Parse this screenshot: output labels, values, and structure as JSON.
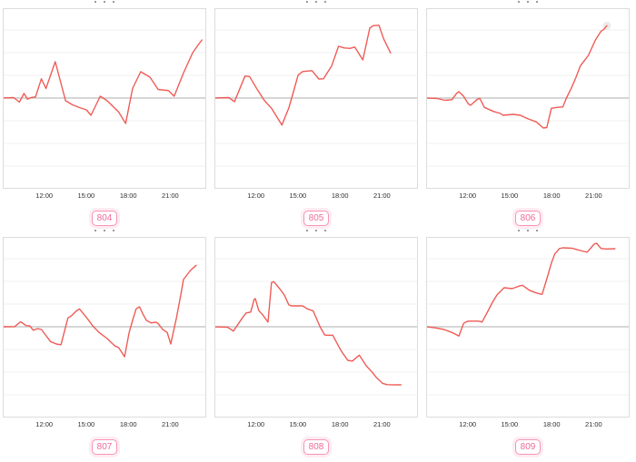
{
  "style": {
    "line_color": "#ef5b55",
    "baseline_color": "#c8c8c8",
    "gridline_color": "#f1f1f1",
    "badge_text_color": "#ee6a9a",
    "badge_border_color": "#f794b6"
  },
  "chart_data": [
    {
      "type": "line",
      "label": "804",
      "x_ticks": [
        "12:00",
        "15:00",
        "18:00",
        "21:00"
      ],
      "x_range": [
        "09:00",
        "23:45"
      ],
      "baseline": 0,
      "y_unit": "relative, 1.0 = one gridline division",
      "grid": "horizontal only",
      "line_color": "#ef5b55",
      "has_end_marker": false,
      "points": [
        [
          "09:00",
          0
        ],
        [
          "09:45",
          0.02
        ],
        [
          "10:10",
          -0.18
        ],
        [
          "10:30",
          0.2
        ],
        [
          "10:45",
          -0.05
        ],
        [
          "11:00",
          0.02
        ],
        [
          "11:20",
          0.05
        ],
        [
          "11:45",
          0.85
        ],
        [
          "12:05",
          0.42
        ],
        [
          "12:45",
          1.6
        ],
        [
          "13:30",
          -0.12
        ],
        [
          "14:00",
          -0.3
        ],
        [
          "14:30",
          -0.42
        ],
        [
          "15:00",
          -0.52
        ],
        [
          "15:20",
          -0.76
        ],
        [
          "16:00",
          0.08
        ],
        [
          "16:30",
          -0.12
        ],
        [
          "17:20",
          -0.62
        ],
        [
          "17:50",
          -1.12
        ],
        [
          "18:20",
          0.42
        ],
        [
          "18:55",
          1.16
        ],
        [
          "19:35",
          0.92
        ],
        [
          "20:10",
          0.38
        ],
        [
          "20:55",
          0.33
        ],
        [
          "21:20",
          0.08
        ],
        [
          "22:00",
          1.1
        ],
        [
          "22:40",
          2.0
        ],
        [
          "23:05",
          2.36
        ],
        [
          "23:20",
          2.56
        ]
      ]
    },
    {
      "type": "line",
      "label": "805",
      "x_ticks": [
        "12:00",
        "15:00",
        "18:00",
        "21:00"
      ],
      "x_range": [
        "09:00",
        "23:45"
      ],
      "baseline": 0,
      "y_unit": "relative, 1.0 = one gridline division",
      "grid": "horizontal only",
      "line_color": "#ef5b55",
      "has_end_marker": false,
      "points": [
        [
          "09:00",
          0
        ],
        [
          "10:00",
          0.02
        ],
        [
          "10:25",
          -0.16
        ],
        [
          "11:10",
          0.97
        ],
        [
          "11:30",
          0.95
        ],
        [
          "12:05",
          0.35
        ],
        [
          "12:35",
          -0.12
        ],
        [
          "13:05",
          -0.45
        ],
        [
          "13:50",
          -1.19
        ],
        [
          "14:20",
          -0.44
        ],
        [
          "14:40",
          0.28
        ],
        [
          "15:00",
          1.01
        ],
        [
          "15:20",
          1.17
        ],
        [
          "16:00",
          1.21
        ],
        [
          "16:30",
          0.84
        ],
        [
          "16:50",
          0.85
        ],
        [
          "17:25",
          1.41
        ],
        [
          "17:55",
          2.28
        ],
        [
          "18:20",
          2.21
        ],
        [
          "18:45",
          2.19
        ],
        [
          "19:05",
          2.25
        ],
        [
          "19:40",
          1.68
        ],
        [
          "20:10",
          3.08
        ],
        [
          "20:25",
          3.19
        ],
        [
          "20:50",
          3.21
        ],
        [
          "21:10",
          2.61
        ],
        [
          "21:40",
          1.99
        ]
      ]
    },
    {
      "type": "line",
      "label": "806",
      "x_ticks": [
        "12:00",
        "15:00",
        "18:00",
        "21:00"
      ],
      "x_range": [
        "09:00",
        "23:45"
      ],
      "baseline": 0,
      "y_unit": "relative, 1.0 = one gridline division",
      "grid": "horizontal only",
      "line_color": "#ef5b55",
      "has_end_marker": true,
      "points": [
        [
          "09:00",
          0
        ],
        [
          "09:45",
          -0.02
        ],
        [
          "10:20",
          -0.1
        ],
        [
          "10:50",
          -0.07
        ],
        [
          "11:10",
          0.21
        ],
        [
          "11:20",
          0.28
        ],
        [
          "11:40",
          0.08
        ],
        [
          "12:00",
          -0.25
        ],
        [
          "12:10",
          -0.32
        ],
        [
          "12:40",
          -0.05
        ],
        [
          "12:50",
          -0.01
        ],
        [
          "13:10",
          -0.41
        ],
        [
          "13:50",
          -0.59
        ],
        [
          "14:20",
          -0.68
        ],
        [
          "14:30",
          -0.76
        ],
        [
          "15:15",
          -0.72
        ],
        [
          "15:45",
          -0.76
        ],
        [
          "16:20",
          -0.92
        ],
        [
          "16:55",
          -1.05
        ],
        [
          "17:25",
          -1.32
        ],
        [
          "17:40",
          -1.3
        ],
        [
          "18:00",
          -0.45
        ],
        [
          "18:25",
          -0.41
        ],
        [
          "18:50",
          -0.39
        ],
        [
          "19:05",
          0.0
        ],
        [
          "19:25",
          0.41
        ],
        [
          "19:45",
          0.88
        ],
        [
          "20:05",
          1.41
        ],
        [
          "20:15",
          1.55
        ],
        [
          "20:40",
          1.88
        ],
        [
          "21:10",
          2.55
        ],
        [
          "21:35",
          2.95
        ],
        [
          "21:45",
          3.01
        ],
        [
          "22:00",
          3.19
        ]
      ]
    },
    {
      "type": "line",
      "label": "807",
      "x_ticks": [
        "12:00",
        "15:00",
        "18:00",
        "21:00"
      ],
      "x_range": [
        "09:00",
        "23:45"
      ],
      "baseline": 0,
      "y_unit": "relative, 1.0 = one gridline division",
      "grid": "horizontal only",
      "line_color": "#ef5b55",
      "has_end_marker": false,
      "points": [
        [
          "09:00",
          0
        ],
        [
          "09:50",
          0.01
        ],
        [
          "10:15",
          0.22
        ],
        [
          "10:40",
          0.05
        ],
        [
          "10:55",
          0.04
        ],
        [
          "11:10",
          -0.15
        ],
        [
          "11:30",
          -0.08
        ],
        [
          "11:45",
          -0.12
        ],
        [
          "12:25",
          -0.65
        ],
        [
          "12:50",
          -0.76
        ],
        [
          "13:10",
          -0.79
        ],
        [
          "13:40",
          0.39
        ],
        [
          "13:55",
          0.48
        ],
        [
          "14:15",
          0.68
        ],
        [
          "14:30",
          0.79
        ],
        [
          "15:05",
          0.35
        ],
        [
          "15:30",
          0.01
        ],
        [
          "15:55",
          -0.25
        ],
        [
          "16:30",
          -0.52
        ],
        [
          "16:50",
          -0.72
        ],
        [
          "17:05",
          -0.85
        ],
        [
          "17:20",
          -0.92
        ],
        [
          "17:45",
          -1.32
        ],
        [
          "18:05",
          -0.25
        ],
        [
          "18:20",
          0.28
        ],
        [
          "18:35",
          0.79
        ],
        [
          "18:50",
          0.88
        ],
        [
          "19:05",
          0.55
        ],
        [
          "19:20",
          0.28
        ],
        [
          "19:40",
          0.17
        ],
        [
          "20:00",
          0.2
        ],
        [
          "20:10",
          0.15
        ],
        [
          "20:30",
          -0.12
        ],
        [
          "20:50",
          -0.25
        ],
        [
          "21:05",
          -0.76
        ],
        [
          "21:30",
          0.41
        ],
        [
          "21:50",
          1.48
        ],
        [
          "22:00",
          2.08
        ],
        [
          "22:30",
          2.48
        ],
        [
          "22:55",
          2.71
        ]
      ]
    },
    {
      "type": "line",
      "label": "808",
      "x_ticks": [
        "12:00",
        "15:00",
        "18:00",
        "21:00"
      ],
      "x_range": [
        "09:00",
        "23:45"
      ],
      "baseline": 0,
      "y_unit": "relative, 1.0 = one gridline division",
      "grid": "horizontal only",
      "line_color": "#ef5b55",
      "has_end_marker": false,
      "points": [
        [
          "09:00",
          0
        ],
        [
          "09:55",
          -0.02
        ],
        [
          "10:20",
          -0.19
        ],
        [
          "11:00",
          0.41
        ],
        [
          "11:15",
          0.61
        ],
        [
          "11:35",
          0.65
        ],
        [
          "11:50",
          1.21
        ],
        [
          "11:55",
          1.24
        ],
        [
          "12:10",
          0.71
        ],
        [
          "12:25",
          0.55
        ],
        [
          "12:50",
          0.21
        ],
        [
          "13:05",
          1.95
        ],
        [
          "13:15",
          1.99
        ],
        [
          "13:40",
          1.68
        ],
        [
          "14:00",
          1.41
        ],
        [
          "14:20",
          0.97
        ],
        [
          "14:30",
          0.92
        ],
        [
          "15:20",
          0.92
        ],
        [
          "15:40",
          0.79
        ],
        [
          "16:05",
          0.7
        ],
        [
          "16:35",
          0.0
        ],
        [
          "16:55",
          -0.36
        ],
        [
          "17:05",
          -0.37
        ],
        [
          "17:30",
          -0.37
        ],
        [
          "17:55",
          -0.85
        ],
        [
          "18:10",
          -1.12
        ],
        [
          "18:35",
          -1.48
        ],
        [
          "18:55",
          -1.51
        ],
        [
          "19:20",
          -1.29
        ],
        [
          "19:25",
          -1.25
        ],
        [
          "19:55",
          -1.72
        ],
        [
          "20:20",
          -1.99
        ],
        [
          "20:40",
          -2.25
        ],
        [
          "21:05",
          -2.49
        ],
        [
          "21:25",
          -2.55
        ],
        [
          "22:25",
          -2.56
        ]
      ]
    },
    {
      "type": "line",
      "label": "809",
      "x_ticks": [
        "12:00",
        "15:00",
        "18:00",
        "21:00"
      ],
      "x_range": [
        "09:00",
        "23:45"
      ],
      "baseline": 0,
      "y_unit": "relative, 1.0 = one gridline division",
      "grid": "horizontal only",
      "line_color": "#ef5b55",
      "has_end_marker": false,
      "points": [
        [
          "09:00",
          0
        ],
        [
          "09:40",
          -0.05
        ],
        [
          "10:15",
          -0.12
        ],
        [
          "10:50",
          -0.25
        ],
        [
          "11:20",
          -0.41
        ],
        [
          "11:40",
          0.15
        ],
        [
          "11:50",
          0.21
        ],
        [
          "12:00",
          0.25
        ],
        [
          "12:45",
          0.25
        ],
        [
          "13:00",
          0.21
        ],
        [
          "13:25",
          0.68
        ],
        [
          "13:45",
          1.08
        ],
        [
          "14:05",
          1.41
        ],
        [
          "14:25",
          1.61
        ],
        [
          "14:35",
          1.72
        ],
        [
          "15:10",
          1.68
        ],
        [
          "15:45",
          1.81
        ],
        [
          "15:55",
          1.83
        ],
        [
          "16:25",
          1.61
        ],
        [
          "16:50",
          1.51
        ],
        [
          "17:10",
          1.45
        ],
        [
          "17:20",
          1.43
        ],
        [
          "17:45",
          2.28
        ],
        [
          "18:00",
          2.81
        ],
        [
          "18:15",
          3.21
        ],
        [
          "18:35",
          3.45
        ],
        [
          "18:50",
          3.48
        ],
        [
          "19:30",
          3.46
        ],
        [
          "20:20",
          3.32
        ],
        [
          "20:35",
          3.29
        ],
        [
          "21:05",
          3.64
        ],
        [
          "21:15",
          3.68
        ],
        [
          "21:35",
          3.45
        ],
        [
          "22:00",
          3.43
        ],
        [
          "22:35",
          3.44
        ]
      ]
    }
  ]
}
